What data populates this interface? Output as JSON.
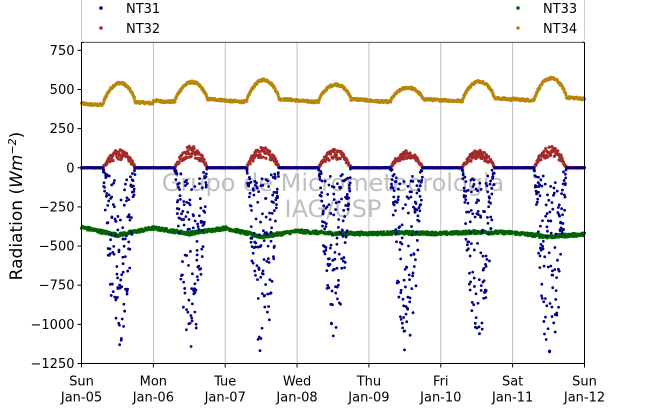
{
  "chart_data": {
    "type": "scatter",
    "title": "",
    "xlabel": "",
    "ylabel": "Radiation (Wm⁻²)",
    "ylabel_prefix": "Radiation (",
    "ylabel_unit": "Wm",
    "ylabel_exp": "−2",
    "ylabel_suffix": ")",
    "xlim": [
      "2020-01-05",
      "2020-01-12"
    ],
    "ylim": [
      -1250,
      800
    ],
    "yticks": [
      -1250,
      -1000,
      -750,
      -500,
      -250,
      0,
      250,
      500,
      750
    ],
    "ytick_labels": [
      "−1250",
      "−1000",
      "−750",
      "−500",
      "−250",
      "0",
      "250",
      "500",
      "750"
    ],
    "xticks": [
      {
        "day": "Sun",
        "date": "Jan-05"
      },
      {
        "day": "Mon",
        "date": "Jan-06"
      },
      {
        "day": "Tue",
        "date": "Jan-07"
      },
      {
        "day": "Wed",
        "date": "Jan-08"
      },
      {
        "day": "Thu",
        "date": "Jan-09"
      },
      {
        "day": "Fri",
        "date": "Jan-10"
      },
      {
        "day": "Sat",
        "date": "Jan-11"
      },
      {
        "day": "Sun",
        "date": "Jan-12"
      }
    ],
    "grid": "vertical",
    "legend_location": "top",
    "watermark": [
      "Grupo de Micrometeorologia",
      "IAG/USP"
    ],
    "series": [
      {
        "name": "NT31",
        "color": "#00008b",
        "description_values": {
          "night": 0,
          "daytime_min_by_day": [
            -1150,
            -1200,
            -1240,
            -1100,
            -1180,
            -1150,
            -1220
          ]
        }
      },
      {
        "name": "NT32",
        "color": "#a52a2a",
        "description_values": {
          "night": 0,
          "daytime_max_by_day": [
            115,
            140,
            135,
            120,
            110,
            115,
            140
          ]
        }
      },
      {
        "name": "NT33",
        "color": "#006400",
        "description_values": {
          "x_days": [
            0,
            0.5,
            1,
            1.5,
            2,
            2.5,
            3,
            3.5,
            4,
            4.5,
            5,
            5.5,
            6,
            6.5,
            7
          ],
          "y": [
            -380,
            -430,
            -385,
            -420,
            -385,
            -440,
            -405,
            -420,
            -420,
            -415,
            -420,
            -410,
            -415,
            -440,
            -425
          ]
        }
      },
      {
        "name": "NT34",
        "color": "#b8860b",
        "description_values": {
          "night_by_day": [
            410,
            430,
            430,
            430,
            430,
            435,
            440
          ],
          "daytime_max_by_day": [
            540,
            545,
            560,
            530,
            510,
            550,
            570
          ]
        }
      }
    ]
  }
}
